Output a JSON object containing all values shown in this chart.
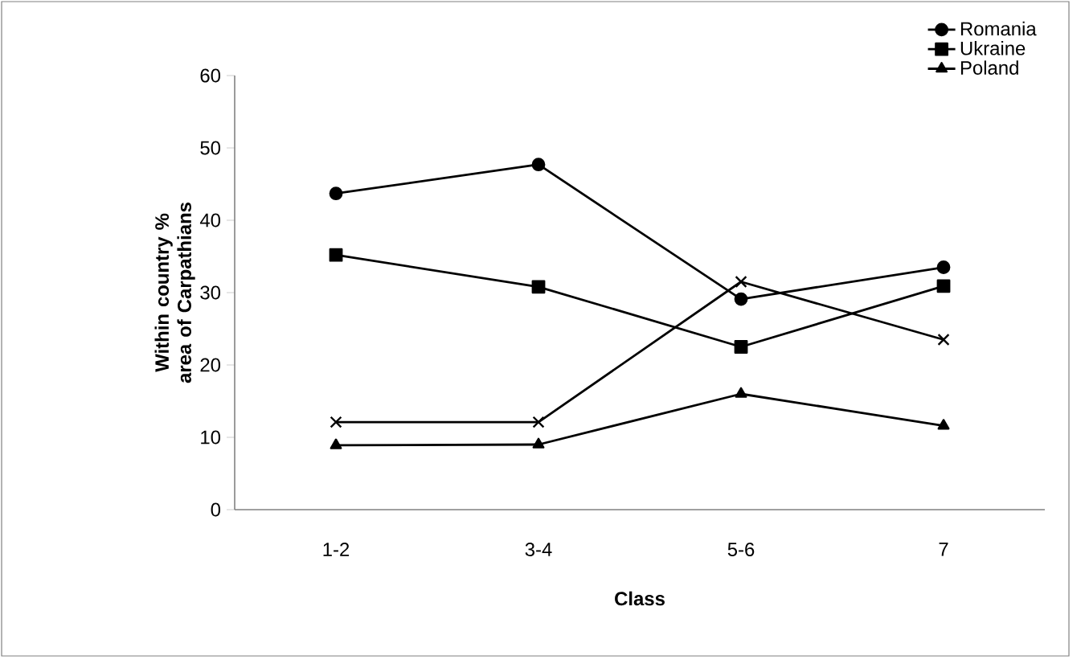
{
  "chart_data": {
    "type": "line",
    "xlabel": "Class",
    "ylabel": "Within country % area of Carpathians",
    "categories": [
      "1-2",
      "3-4",
      "5-6",
      "7"
    ],
    "ylim": [
      0,
      60
    ],
    "yticks": [
      0,
      10,
      20,
      30,
      40,
      50,
      60
    ],
    "grid": false,
    "legend": "top right",
    "line_style": "solid",
    "series": [
      {
        "name": "Romania",
        "color": "#000000",
        "marker": "circle",
        "values": [
          43.7,
          47.7,
          29.1,
          33.5
        ]
      },
      {
        "name": "Ukraine",
        "color": "#000000",
        "marker": "square",
        "values": [
          35.2,
          30.8,
          22.5,
          30.9
        ]
      },
      {
        "name": "Poland",
        "color": "#000000",
        "marker": "triangle",
        "values": [
          8.9,
          9,
          16,
          11.6
        ]
      },
      {
        "color": "#000000",
        "marker": "cross",
        "values": [
          12.1,
          12.1,
          31.5,
          23.5
        ]
      }
    ]
  }
}
